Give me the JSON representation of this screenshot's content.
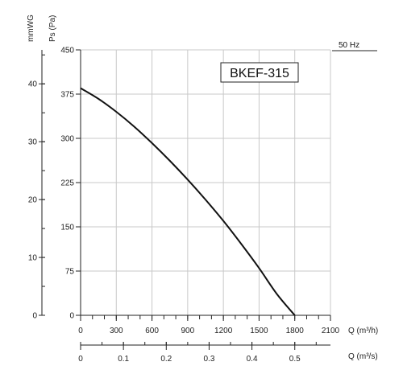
{
  "chart_data": {
    "type": "line",
    "model": "BKEF-315",
    "frequency": "50 Hz",
    "x_primary": {
      "unit": "Q (m³/h)",
      "range": [
        0,
        2100
      ],
      "ticks": [
        0,
        300,
        600,
        900,
        1200,
        1500,
        1800,
        2100
      ],
      "minor_step": 100
    },
    "x_secondary": {
      "unit": "Q (m³/s)",
      "range": [
        0,
        0.5833
      ],
      "ticks": [
        0,
        0.1,
        0.2,
        0.3,
        0.4,
        0.5
      ],
      "minor_step": 0.05
    },
    "y_primary": {
      "unit": "Ps (Pa)",
      "range": [
        0,
        450
      ],
      "ticks": [
        0,
        75,
        150,
        225,
        300,
        375,
        450
      ]
    },
    "y_secondary": {
      "unit": "mmWG",
      "range": [
        0,
        45.87
      ],
      "ticks": [
        0,
        10,
        20,
        30,
        40
      ],
      "minor_step": 5
    },
    "grid": true,
    "series": [
      {
        "x": [
          0,
          150,
          300,
          450,
          600,
          750,
          900,
          1050,
          1200,
          1350,
          1500,
          1650,
          1800
        ],
        "y": [
          385,
          367,
          345,
          320,
          292,
          262,
          230,
          196,
          160,
          121,
          80,
          36,
          0
        ]
      }
    ]
  }
}
